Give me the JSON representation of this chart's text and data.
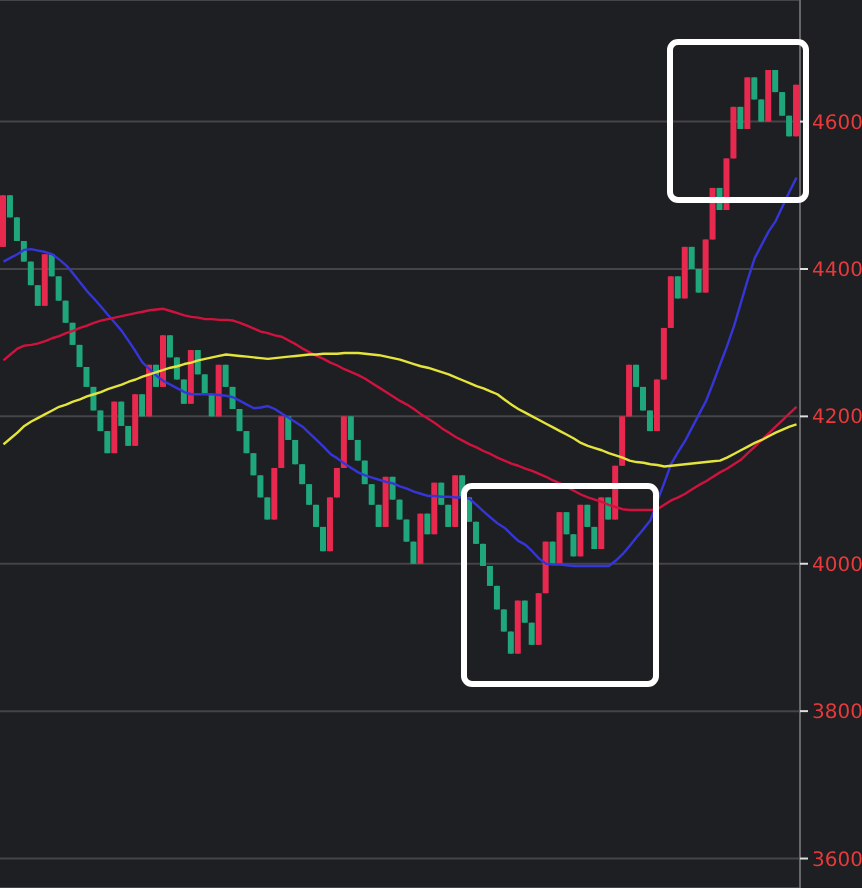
{
  "chart_data": {
    "type": "candlestick",
    "categories": [
      null,
      null,
      null,
      null,
      null,
      null,
      null,
      null,
      null,
      null,
      null,
      null,
      null,
      null,
      null,
      null,
      null,
      null,
      null,
      null,
      null,
      null,
      null,
      null,
      null,
      null,
      null,
      null,
      null,
      null,
      null,
      null,
      null,
      null,
      null,
      null,
      null,
      null,
      null,
      null,
      null,
      null,
      null,
      null,
      null,
      null,
      null,
      null,
      null,
      null,
      null,
      null,
      null,
      null,
      null,
      null,
      null,
      null,
      null,
      null,
      null,
      null,
      null,
      null,
      null,
      null,
      null,
      null,
      null,
      null,
      null,
      null,
      null,
      null,
      null,
      null,
      null,
      null,
      null,
      null,
      null,
      null,
      null,
      null,
      null,
      null,
      null,
      null,
      null,
      null,
      null,
      null,
      null,
      null,
      null,
      null,
      null,
      null,
      null,
      null,
      null,
      null,
      null,
      null,
      null,
      null,
      null,
      null,
      null,
      null,
      null,
      null,
      null,
      null,
      null
    ],
    "ohlc": [
      [
        4430,
        4500,
        4430,
        4500
      ],
      [
        4500,
        4500,
        4470,
        4470
      ],
      [
        4470,
        4470,
        4438,
        4438
      ],
      [
        4438,
        4438,
        4410,
        4410
      ],
      [
        4410,
        4410,
        4378,
        4378
      ],
      [
        4378,
        4378,
        4350,
        4350
      ],
      [
        4350,
        4420,
        4350,
        4420
      ],
      [
        4420,
        4420,
        4390,
        4390
      ],
      [
        4390,
        4390,
        4357,
        4357
      ],
      [
        4357,
        4357,
        4327,
        4327
      ],
      [
        4327,
        4327,
        4297,
        4297
      ],
      [
        4297,
        4297,
        4267,
        4267
      ],
      [
        4267,
        4267,
        4240,
        4240
      ],
      [
        4240,
        4240,
        4208,
        4208
      ],
      [
        4208,
        4208,
        4180,
        4180
      ],
      [
        4180,
        4180,
        4150,
        4150
      ],
      [
        4150,
        4220,
        4150,
        4220
      ],
      [
        4220,
        4220,
        4187,
        4187
      ],
      [
        4187,
        4187,
        4160,
        4160
      ],
      [
        4160,
        4230,
        4160,
        4230
      ],
      [
        4230,
        4230,
        4200,
        4200
      ],
      [
        4200,
        4270,
        4200,
        4270
      ],
      [
        4270,
        4270,
        4240,
        4240
      ],
      [
        4240,
        4310,
        4240,
        4310
      ],
      [
        4310,
        4310,
        4280,
        4280
      ],
      [
        4280,
        4280,
        4250,
        4250
      ],
      [
        4250,
        4250,
        4217,
        4217
      ],
      [
        4217,
        4290,
        4217,
        4290
      ],
      [
        4290,
        4290,
        4257,
        4257
      ],
      [
        4257,
        4257,
        4230,
        4230
      ],
      [
        4230,
        4230,
        4200,
        4200
      ],
      [
        4200,
        4270,
        4200,
        4270
      ],
      [
        4270,
        4270,
        4240,
        4240
      ],
      [
        4240,
        4240,
        4210,
        4210
      ],
      [
        4210,
        4210,
        4180,
        4180
      ],
      [
        4180,
        4180,
        4150,
        4150
      ],
      [
        4150,
        4150,
        4120,
        4120
      ],
      [
        4120,
        4120,
        4090,
        4090
      ],
      [
        4090,
        4090,
        4060,
        4060
      ],
      [
        4060,
        4130,
        4060,
        4130
      ],
      [
        4130,
        4200,
        4130,
        4200
      ],
      [
        4200,
        4200,
        4168,
        4168
      ],
      [
        4168,
        4168,
        4135,
        4135
      ],
      [
        4135,
        4135,
        4108,
        4108
      ],
      [
        4108,
        4108,
        4080,
        4080
      ],
      [
        4080,
        4080,
        4050,
        4050
      ],
      [
        4050,
        4050,
        4017,
        4017
      ],
      [
        4017,
        4090,
        4017,
        4090
      ],
      [
        4090,
        4130,
        4090,
        4130
      ],
      [
        4130,
        4200,
        4130,
        4200
      ],
      [
        4200,
        4200,
        4168,
        4168
      ],
      [
        4168,
        4168,
        4140,
        4140
      ],
      [
        4140,
        4140,
        4108,
        4108
      ],
      [
        4108,
        4108,
        4080,
        4080
      ],
      [
        4080,
        4080,
        4050,
        4050
      ],
      [
        4050,
        4118,
        4050,
        4118
      ],
      [
        4118,
        4118,
        4087,
        4087
      ],
      [
        4087,
        4087,
        4060,
        4060
      ],
      [
        4060,
        4060,
        4030,
        4030
      ],
      [
        4030,
        4030,
        4000,
        4000
      ],
      [
        4000,
        4068,
        4000,
        4068
      ],
      [
        4068,
        4068,
        4040,
        4040
      ],
      [
        4040,
        4110,
        4040,
        4110
      ],
      [
        4110,
        4110,
        4080,
        4080
      ],
      [
        4080,
        4080,
        4050,
        4050
      ],
      [
        4050,
        4120,
        4050,
        4120
      ],
      [
        4120,
        4120,
        4090,
        4090
      ],
      [
        4090,
        4090,
        4057,
        4057
      ],
      [
        4057,
        4057,
        4027,
        4027
      ],
      [
        4027,
        4027,
        3997,
        3997
      ],
      [
        3997,
        3997,
        3970,
        3970
      ],
      [
        3970,
        3970,
        3938,
        3938
      ],
      [
        3938,
        3938,
        3908,
        3908
      ],
      [
        3908,
        3908,
        3878,
        3878
      ],
      [
        3878,
        3950,
        3878,
        3950
      ],
      [
        3950,
        3950,
        3920,
        3920
      ],
      [
        3920,
        3920,
        3890,
        3890
      ],
      [
        3890,
        3960,
        3890,
        3960
      ],
      [
        3960,
        4030,
        3960,
        4030
      ],
      [
        4030,
        4030,
        4000,
        4000
      ],
      [
        4000,
        4070,
        4000,
        4070
      ],
      [
        4070,
        4070,
        4040,
        4040
      ],
      [
        4040,
        4040,
        4010,
        4010
      ],
      [
        4010,
        4080,
        4010,
        4080
      ],
      [
        4080,
        4080,
        4050,
        4050
      ],
      [
        4050,
        4050,
        4020,
        4020
      ],
      [
        4020,
        4090,
        4020,
        4090
      ],
      [
        4090,
        4090,
        4060,
        4060
      ],
      [
        4060,
        4133,
        4060,
        4133
      ],
      [
        4133,
        4200,
        4133,
        4200
      ],
      [
        4200,
        4270,
        4200,
        4270
      ],
      [
        4270,
        4270,
        4240,
        4240
      ],
      [
        4240,
        4240,
        4208,
        4208
      ],
      [
        4208,
        4208,
        4180,
        4180
      ],
      [
        4180,
        4250,
        4180,
        4250
      ],
      [
        4250,
        4320,
        4250,
        4320
      ],
      [
        4320,
        4390,
        4320,
        4390
      ],
      [
        4390,
        4390,
        4360,
        4360
      ],
      [
        4360,
        4430,
        4360,
        4430
      ],
      [
        4430,
        4430,
        4400,
        4400
      ],
      [
        4400,
        4400,
        4368,
        4368
      ],
      [
        4368,
        4440,
        4368,
        4440
      ],
      [
        4440,
        4510,
        4440,
        4510
      ],
      [
        4510,
        4510,
        4480,
        4480
      ],
      [
        4480,
        4550,
        4480,
        4550
      ],
      [
        4550,
        4620,
        4550,
        4620
      ],
      [
        4620,
        4620,
        4590,
        4590
      ],
      [
        4590,
        4660,
        4590,
        4660
      ],
      [
        4660,
        4660,
        4630,
        4630
      ],
      [
        4630,
        4630,
        4600,
        4600
      ],
      [
        4600,
        4670,
        4600,
        4670
      ],
      [
        4670,
        4670,
        4640,
        4640
      ],
      [
        4640,
        4640,
        4608,
        4608
      ],
      [
        4608,
        4608,
        4580,
        4580
      ],
      [
        4580,
        4650,
        4580,
        4650
      ]
    ],
    "colors": [
      "#e8294f",
      "#1fa67a",
      "#1fa67a",
      "#1fa67a",
      "#1fa67a",
      "#1fa67a",
      "#e8294f",
      "#1fa67a",
      "#1fa67a",
      "#1fa67a",
      "#1fa67a",
      "#1fa67a",
      "#1fa67a",
      "#1fa67a",
      "#1fa67a",
      "#1fa67a",
      "#e8294f",
      "#1fa67a",
      "#1fa67a",
      "#e8294f",
      "#1fa67a",
      "#e8294f",
      "#1fa67a",
      "#e8294f",
      "#1fa67a",
      "#1fa67a",
      "#1fa67a",
      "#e8294f",
      "#1fa67a",
      "#1fa67a",
      "#1fa67a",
      "#e8294f",
      "#1fa67a",
      "#1fa67a",
      "#1fa67a",
      "#1fa67a",
      "#1fa67a",
      "#1fa67a",
      "#1fa67a",
      "#e8294f",
      "#e8294f",
      "#1fa67a",
      "#1fa67a",
      "#1fa67a",
      "#1fa67a",
      "#1fa67a",
      "#1fa67a",
      "#e8294f",
      "#e8294f",
      "#e8294f",
      "#1fa67a",
      "#1fa67a",
      "#1fa67a",
      "#1fa67a",
      "#1fa67a",
      "#e8294f",
      "#1fa67a",
      "#1fa67a",
      "#1fa67a",
      "#1fa67a",
      "#e8294f",
      "#1fa67a",
      "#e8294f",
      "#1fa67a",
      "#1fa67a",
      "#e8294f",
      "#1fa67a",
      "#1fa67a",
      "#1fa67a",
      "#1fa67a",
      "#1fa67a",
      "#1fa67a",
      "#1fa67a",
      "#1fa67a",
      "#e8294f",
      "#1fa67a",
      "#1fa67a",
      "#e8294f",
      "#e8294f",
      "#1fa67a",
      "#e8294f",
      "#1fa67a",
      "#1fa67a",
      "#e8294f",
      "#1fa67a",
      "#1fa67a",
      "#e8294f",
      "#1fa67a",
      "#e8294f",
      "#e8294f",
      "#e8294f",
      "#1fa67a",
      "#1fa67a",
      "#1fa67a",
      "#e8294f",
      "#e8294f",
      "#e8294f",
      "#1fa67a",
      "#e8294f",
      "#1fa67a",
      "#1fa67a",
      "#e8294f",
      "#e8294f",
      "#1fa67a",
      "#e8294f",
      "#e8294f",
      "#1fa67a",
      "#e8294f",
      "#1fa67a",
      "#1fa67a",
      "#e8294f",
      "#1fa67a",
      "#1fa67a",
      "#1fa67a",
      "#e8294f"
    ],
    "series": [
      {
        "type": "line",
        "color": "#3535d8",
        "values": [
          4410,
          4415,
          4420,
          4426,
          4427,
          4425,
          4423,
          4420,
          4413,
          4405,
          4394,
          4382,
          4370,
          4360,
          4349,
          4338,
          4327,
          4316,
          4302,
          4288,
          4273,
          4264,
          4255,
          4248,
          4243,
          4238,
          4233,
          4230,
          4230,
          4230,
          4230,
          4229,
          4228,
          4226,
          4221,
          4216,
          4211,
          4212,
          4214,
          4210,
          4204,
          4198,
          4192,
          4186,
          4177,
          4168,
          4159,
          4149,
          4143,
          4136,
          4130,
          4124,
          4120,
          4117,
          4114,
          4111,
          4109,
          4105,
          4102,
          4098,
          4095,
          4092,
          4092,
          4091,
          4091,
          4090,
          4090,
          4088,
          4080,
          4071,
          4063,
          4055,
          4049,
          4040,
          4031,
          4026,
          4017,
          4007,
          4000,
          3999,
          3999,
          3998,
          3997,
          3997,
          3997,
          3997,
          3997,
          3997,
          4004,
          4013,
          4024,
          4036,
          4047,
          4059,
          4085,
          4110,
          4136,
          4152,
          4167,
          4185,
          4203,
          4221,
          4245,
          4270,
          4295,
          4322,
          4354,
          4386,
          4415,
          4433,
          4451,
          4465,
          4485,
          4505,
          4524
        ]
      },
      {
        "type": "line",
        "color": "#d0123e",
        "values": [
          4276,
          4284,
          4292,
          4296,
          4297,
          4299,
          4302,
          4306,
          4309,
          4313,
          4316,
          4320,
          4323,
          4327,
          4330,
          4332,
          4334,
          4336,
          4338,
          4340,
          4342,
          4344,
          4345,
          4346,
          4343,
          4340,
          4337,
          4335,
          4334,
          4332,
          4332,
          4331,
          4331,
          4330,
          4327,
          4323,
          4319,
          4315,
          4313,
          4310,
          4308,
          4303,
          4298,
          4292,
          4287,
          4282,
          4278,
          4273,
          4269,
          4264,
          4260,
          4256,
          4251,
          4245,
          4239,
          4233,
          4227,
          4221,
          4216,
          4210,
          4203,
          4197,
          4191,
          4184,
          4178,
          4172,
          4167,
          4162,
          4158,
          4153,
          4149,
          4144,
          4140,
          4136,
          4133,
          4129,
          4126,
          4122,
          4118,
          4113,
          4109,
          4104,
          4099,
          4094,
          4090,
          4087,
          4084,
          4080,
          4077,
          4074,
          4073,
          4073,
          4073,
          4073,
          4074,
          4080,
          4086,
          4090,
          4095,
          4101,
          4107,
          4112,
          4118,
          4124,
          4129,
          4135,
          4141,
          4150,
          4159,
          4168,
          4177,
          4186,
          4195,
          4204,
          4213
        ]
      },
      {
        "type": "line",
        "color": "#e4e43c",
        "values": [
          4162,
          4170,
          4178,
          4187,
          4193,
          4198,
          4203,
          4208,
          4213,
          4216,
          4220,
          4223,
          4227,
          4230,
          4233,
          4237,
          4240,
          4243,
          4247,
          4250,
          4254,
          4257,
          4260,
          4263,
          4266,
          4268,
          4271,
          4273,
          4276,
          4278,
          4280,
          4282,
          4284,
          4283,
          4282,
          4281,
          4280,
          4279,
          4278,
          4279,
          4280,
          4281,
          4282,
          4283,
          4284,
          4284,
          4285,
          4285,
          4285,
          4286,
          4286,
          4286,
          4285,
          4284,
          4283,
          4281,
          4279,
          4277,
          4274,
          4271,
          4268,
          4266,
          4263,
          4260,
          4257,
          4253,
          4249,
          4245,
          4241,
          4238,
          4234,
          4230,
          4223,
          4216,
          4210,
          4205,
          4200,
          4195,
          4190,
          4185,
          4180,
          4175,
          4170,
          4164,
          4160,
          4157,
          4154,
          4150,
          4147,
          4144,
          4140,
          4138,
          4137,
          4135,
          4134,
          4132,
          4133,
          4134,
          4135,
          4136,
          4137,
          4138,
          4139,
          4140,
          4144,
          4149,
          4154,
          4159,
          4164,
          4168,
          4173,
          4178,
          4182,
          4186,
          4189
        ]
      }
    ],
    "ylim": [
      3560,
      4765
    ],
    "yticks": [
      3600,
      3800,
      4000,
      4200,
      4400,
      4600
    ],
    "grid": "y",
    "tick_labels": "y"
  }
}
